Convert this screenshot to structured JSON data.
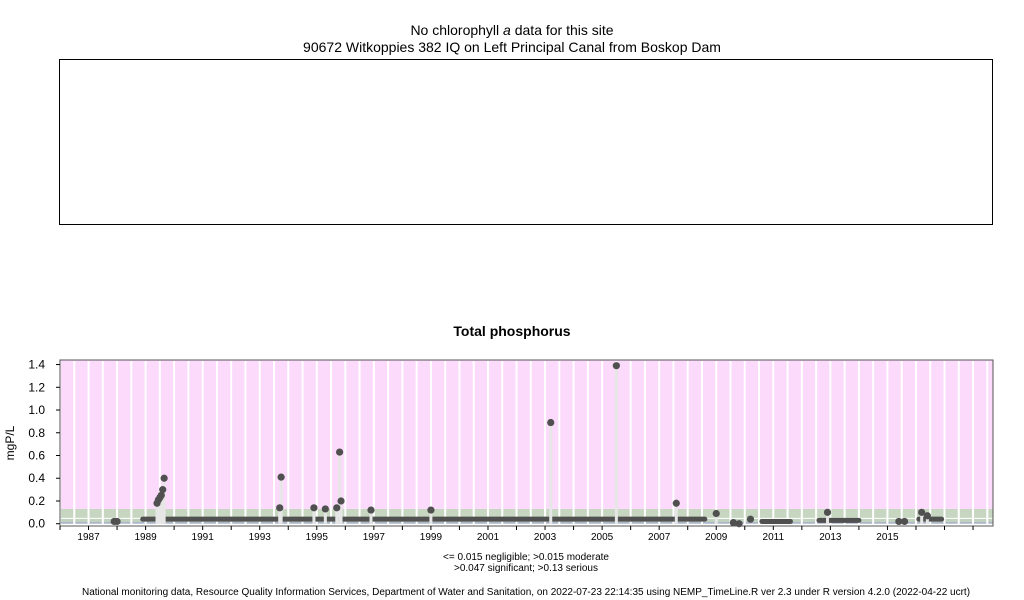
{
  "header": {
    "title_prefix": "No chlorophyll",
    "title_italic": "a",
    "title_suffix": "data for this site",
    "site": "90672 Witkoppies 382 IQ on Left Principal Canal from Boskop Dam"
  },
  "chart_data": {
    "type": "scatter",
    "title": "Total phosphorus",
    "ylabel": "mgP/L",
    "xlabel": "",
    "xlim": [
      1986.0,
      2018.7
    ],
    "ylim": [
      -0.02,
      1.44
    ],
    "y_ticks": [
      0.0,
      0.2,
      0.4,
      0.6,
      0.8,
      1.0,
      1.2,
      1.4
    ],
    "y_tick_labels": [
      "0.0",
      "0.2",
      "0.4",
      "0.6",
      "0.8",
      "1.0",
      "1.2",
      "1.4"
    ],
    "x_ticks": [
      1987,
      1989,
      1991,
      1993,
      1995,
      1997,
      1999,
      2001,
      2003,
      2005,
      2007,
      2009,
      2011,
      2013,
      2015
    ],
    "x_tick_labels": [
      "1987",
      "1989",
      "1991",
      "1993",
      "1995",
      "1997",
      "1999",
      "2001",
      "2003",
      "2005",
      "2007",
      "2009",
      "2011",
      "2013",
      "2015"
    ],
    "grid": true,
    "bands": [
      {
        "label": "negligible",
        "from": 0.0,
        "to": 0.015,
        "color": "#a9b4c8"
      },
      {
        "label": "moderate",
        "from": 0.015,
        "to": 0.047,
        "color": "#c0d1bd"
      },
      {
        "label": "significant",
        "from": 0.047,
        "to": 0.13,
        "color": "#c7d6c1"
      },
      {
        "label": "serious",
        "from": 0.13,
        "to": 1.44,
        "color": "#fbdafb"
      }
    ],
    "series": [
      {
        "points": [
          [
            1987.9,
            0.02
          ],
          [
            1988.0,
            0.02
          ],
          [
            1989.4,
            0.18
          ],
          [
            1989.45,
            0.21
          ],
          [
            1989.5,
            0.23
          ],
          [
            1989.55,
            0.25
          ],
          [
            1989.6,
            0.3
          ],
          [
            1989.65,
            0.4
          ],
          [
            1993.7,
            0.14
          ],
          [
            1993.75,
            0.41
          ],
          [
            1994.9,
            0.14
          ],
          [
            1995.3,
            0.13
          ],
          [
            1995.7,
            0.14
          ],
          [
            1995.8,
            0.63
          ],
          [
            1995.85,
            0.2
          ],
          [
            1996.9,
            0.12
          ],
          [
            1999.0,
            0.12
          ],
          [
            2003.2,
            0.89
          ],
          [
            2005.5,
            1.39
          ],
          [
            2007.6,
            0.18
          ],
          [
            2009.0,
            0.09
          ],
          [
            2012.9,
            0.1
          ],
          [
            2016.2,
            0.1
          ],
          [
            2016.4,
            0.07
          ],
          [
            2009.6,
            0.01
          ],
          [
            2009.8,
            0.0
          ],
          [
            2010.2,
            0.04
          ],
          [
            2015.4,
            0.02
          ],
          [
            2015.6,
            0.02
          ]
        ]
      }
    ],
    "baseline_segments": [
      {
        "from": 1988.9,
        "to": 2008.6,
        "level": 0.04
      },
      {
        "from": 2010.6,
        "to": 2011.6,
        "level": 0.02
      },
      {
        "from": 2012.6,
        "to": 2014.0,
        "level": 0.03
      },
      {
        "from": 2016.1,
        "to": 2016.9,
        "level": 0.04
      }
    ]
  },
  "legend": {
    "line1": "<= 0.015 negligible; >0.015 moderate",
    "line2": ">0.047 significant; >0.13 serious"
  },
  "footer": "National monitoring data, Resource Quality Information Services, Department of Water and Sanitation, on 2022-07-23 22:14:35 using NEMP_TimeLine.R ver 2.3 under R version 4.2.0 (2022-04-22 ucrt)",
  "colors": {
    "point": "#505050",
    "stem": "#e6e6e6",
    "grid": "#ffffff",
    "frame": "#555555"
  }
}
